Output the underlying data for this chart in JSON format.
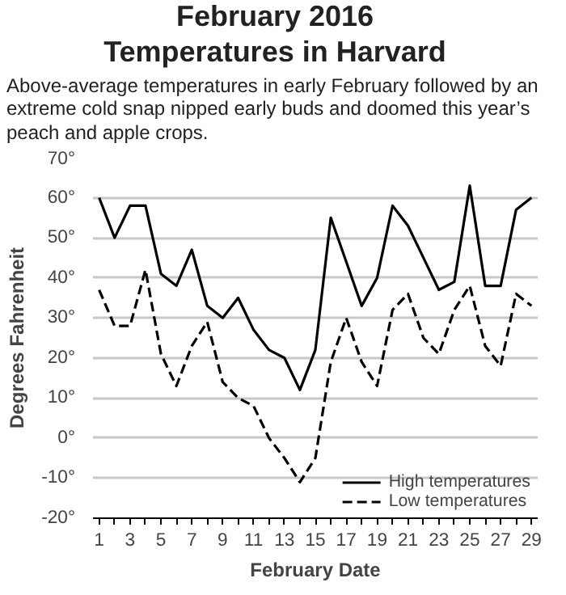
{
  "chart_data": {
    "type": "line",
    "title": "February 2016 Temperatures in Harvard",
    "subtitle": "Above-average temperatures in early February followed by an extreme cold snap nipped early buds and doomed this year’s peach and apple crops.",
    "xlabel": "February Date",
    "ylabel": "Degrees Fahrenheit",
    "x": [
      1,
      2,
      3,
      4,
      5,
      6,
      7,
      8,
      9,
      10,
      11,
      12,
      13,
      14,
      15,
      16,
      17,
      18,
      19,
      20,
      21,
      22,
      23,
      24,
      25,
      26,
      27,
      28,
      29
    ],
    "xlim": [
      0.6,
      29.4
    ],
    "xticks": [
      1,
      {
        "value": 2,
        "label": null
      },
      3,
      {
        "value": 4,
        "label": null
      },
      5,
      {
        "value": 6,
        "label": null
      },
      7,
      {
        "value": 8,
        "label": null
      },
      9,
      {
        "value": 10,
        "label": null
      },
      11,
      {
        "value": 12,
        "label": null
      },
      13,
      {
        "value": 14,
        "label": null
      },
      15,
      {
        "value": 16,
        "label": null
      },
      17,
      {
        "value": 18,
        "label": null
      },
      19,
      {
        "value": 20,
        "label": null
      },
      21,
      {
        "value": 22,
        "label": null
      },
      23,
      {
        "value": 24,
        "label": null
      },
      25,
      {
        "value": 26,
        "label": null
      },
      27,
      {
        "value": 28,
        "label": null
      },
      29
    ],
    "series": [
      {
        "name": "High temperatures",
        "color": "#000000",
        "line_style": "solid",
        "values": [
          60,
          50,
          58,
          58,
          41,
          38,
          47,
          33,
          30,
          35,
          27,
          22,
          20,
          12,
          22,
          55,
          44,
          33,
          40,
          58,
          53,
          45,
          37,
          39,
          63,
          38,
          38,
          57,
          60
        ]
      },
      {
        "name": "Low temperatures",
        "color": "#000000",
        "line_style": "dashed",
        "values": [
          37,
          28,
          28,
          42,
          21,
          13,
          23,
          29,
          14,
          10,
          8,
          0,
          -5,
          -11,
          -5,
          19,
          30,
          19,
          13,
          32,
          36,
          25,
          21,
          32,
          38,
          23,
          18,
          36,
          33
        ]
      }
    ],
    "ylim": [
      -20,
      70
    ],
    "yticks": [
      {
        "value": -20,
        "label": "-20°"
      },
      {
        "value": -10,
        "label": "-10°"
      },
      {
        "value": 0,
        "label": "0°"
      },
      {
        "value": 10,
        "label": "10°"
      },
      {
        "value": 20,
        "label": "20°"
      },
      {
        "value": 30,
        "label": "30°"
      },
      {
        "value": 40,
        "label": "40°"
      },
      {
        "value": 50,
        "label": "50°"
      },
      {
        "value": 60,
        "label": "60°"
      },
      {
        "value": 70,
        "label": "70°"
      }
    ],
    "grid": "y",
    "legend": "bottom right",
    "marker": "none"
  }
}
